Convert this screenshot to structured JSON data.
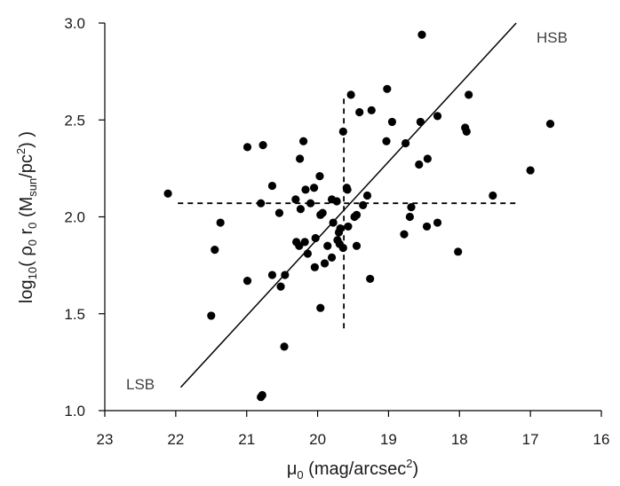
{
  "chart_data": {
    "type": "scatter",
    "title": "",
    "xlabel": {
      "main": "μ",
      "sub": "0",
      "rest": "  (mag/arcsec",
      "sup": "2",
      "end": ")"
    },
    "ylabel": {
      "a": "log",
      "a_sub": "10",
      "b": "( ρ",
      "b_sub": "0",
      "c": " r",
      "c_sub": "0",
      "d": "  (M",
      "d_sub": "sun",
      "e": "/pc",
      "e_sup": "2",
      "f": ") )"
    },
    "xlim": [
      23,
      16
    ],
    "ylim": [
      1.0,
      3.0
    ],
    "x_reversed": true,
    "xticks": [
      23,
      22,
      21,
      20,
      19,
      18,
      17,
      16
    ],
    "xtick_labels": [
      "23",
      "22",
      "21",
      "20",
      "19",
      "18",
      "17",
      "16"
    ],
    "yticks": [
      1.0,
      1.5,
      2.0,
      2.5,
      3.0
    ],
    "ytick_labels": [
      "1.0",
      "1.5",
      "2.0",
      "2.5",
      "3.0"
    ],
    "grid": false,
    "legend": "none",
    "annotations": [
      {
        "text": "HSB",
        "x": 17.53,
        "y": 2.94
      },
      {
        "text": "LSB",
        "x": 22.5,
        "y": 1.12
      }
    ],
    "fit_line": {
      "x": [
        21.93,
        17.2
      ],
      "y": [
        1.12,
        3.0
      ]
    },
    "dashed_lines": [
      {
        "x": [
          21.97,
          17.17
        ],
        "y": [
          2.07,
          2.07
        ]
      },
      {
        "x": [
          19.63,
          19.63
        ],
        "y": [
          2.61,
          1.41
        ]
      }
    ],
    "marker_color": "#000000",
    "line_color": "#000000",
    "points": [
      [
        22.11,
        2.12
      ],
      [
        21.5,
        1.49
      ],
      [
        21.45,
        1.83
      ],
      [
        21.37,
        1.97
      ],
      [
        20.99,
        1.67
      ],
      [
        20.99,
        2.36
      ],
      [
        20.77,
        2.37
      ],
      [
        20.8,
        2.07
      ],
      [
        20.78,
        1.08
      ],
      [
        20.8,
        1.07
      ],
      [
        20.64,
        1.7
      ],
      [
        20.64,
        2.16
      ],
      [
        20.54,
        2.02
      ],
      [
        20.52,
        1.64
      ],
      [
        20.47,
        1.33
      ],
      [
        20.46,
        1.7
      ],
      [
        20.31,
        2.09
      ],
      [
        20.3,
        1.87
      ],
      [
        20.26,
        1.85
      ],
      [
        20.25,
        2.3
      ],
      [
        20.24,
        2.04
      ],
      [
        20.2,
        2.39
      ],
      [
        20.18,
        1.87
      ],
      [
        20.17,
        2.14
      ],
      [
        20.14,
        1.81
      ],
      [
        20.1,
        2.07
      ],
      [
        20.05,
        2.15
      ],
      [
        20.04,
        1.74
      ],
      [
        20.03,
        1.89
      ],
      [
        19.97,
        2.21
      ],
      [
        19.96,
        1.53
      ],
      [
        19.96,
        2.01
      ],
      [
        19.93,
        2.02
      ],
      [
        19.9,
        1.76
      ],
      [
        19.86,
        1.85
      ],
      [
        19.8,
        1.79
      ],
      [
        19.8,
        2.09
      ],
      [
        19.78,
        1.97
      ],
      [
        19.73,
        2.08
      ],
      [
        19.72,
        1.88
      ],
      [
        19.7,
        1.92
      ],
      [
        19.68,
        1.94
      ],
      [
        19.69,
        1.86
      ],
      [
        19.64,
        2.44
      ],
      [
        19.64,
        1.84
      ],
      [
        19.59,
        2.15
      ],
      [
        19.58,
        2.14
      ],
      [
        19.57,
        1.95
      ],
      [
        19.53,
        2.63
      ],
      [
        19.48,
        2.0
      ],
      [
        19.45,
        2.01
      ],
      [
        19.45,
        1.85
      ],
      [
        19.41,
        2.54
      ],
      [
        19.36,
        2.06
      ],
      [
        19.3,
        2.11
      ],
      [
        19.26,
        1.68
      ],
      [
        19.24,
        2.55
      ],
      [
        19.03,
        2.39
      ],
      [
        19.02,
        2.66
      ],
      [
        18.95,
        2.49
      ],
      [
        18.78,
        1.91
      ],
      [
        18.76,
        2.38
      ],
      [
        18.7,
        2.0
      ],
      [
        18.68,
        2.05
      ],
      [
        18.57,
        2.27
      ],
      [
        18.55,
        2.49
      ],
      [
        18.53,
        2.94
      ],
      [
        18.46,
        1.95
      ],
      [
        18.45,
        2.3
      ],
      [
        18.31,
        1.97
      ],
      [
        18.31,
        2.52
      ],
      [
        18.02,
        1.82
      ],
      [
        17.92,
        2.46
      ],
      [
        17.9,
        2.44
      ],
      [
        17.87,
        2.63
      ],
      [
        17.53,
        2.11
      ],
      [
        17.0,
        2.24
      ],
      [
        16.72,
        2.48
      ]
    ]
  }
}
